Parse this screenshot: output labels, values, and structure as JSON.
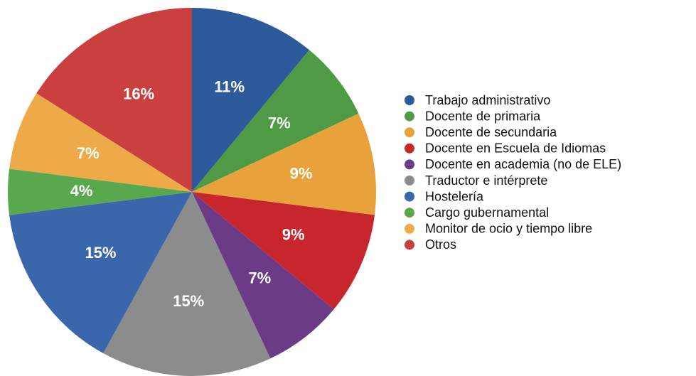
{
  "chart_data": {
    "type": "pie",
    "categories": [
      "Trabajo administrativo",
      "Docente de primaria",
      "Docente de secundaria",
      "Docente en Escuela de Idiomas",
      "Docente en academia (no de ELE)",
      "Traductor e intérprete",
      "Hostelería",
      "Cargo gubernamental",
      "Monitor de ocio y tiempo libre",
      "Otros"
    ],
    "values": [
      11,
      7,
      9,
      9,
      7,
      15,
      15,
      4,
      7,
      16
    ],
    "value_labels": [
      "11%",
      "7%",
      "9%",
      "9%",
      "7%",
      "15%",
      "15%",
      "4%",
      "7%",
      "16%"
    ],
    "colors": [
      "#2d5a9b",
      "#4e9a45",
      "#e9a23b",
      "#c8262d",
      "#6b3b88",
      "#8c8c8c",
      "#3a67ab",
      "#5aa84e",
      "#eeaa48",
      "#c9403f"
    ],
    "legend": "right"
  }
}
